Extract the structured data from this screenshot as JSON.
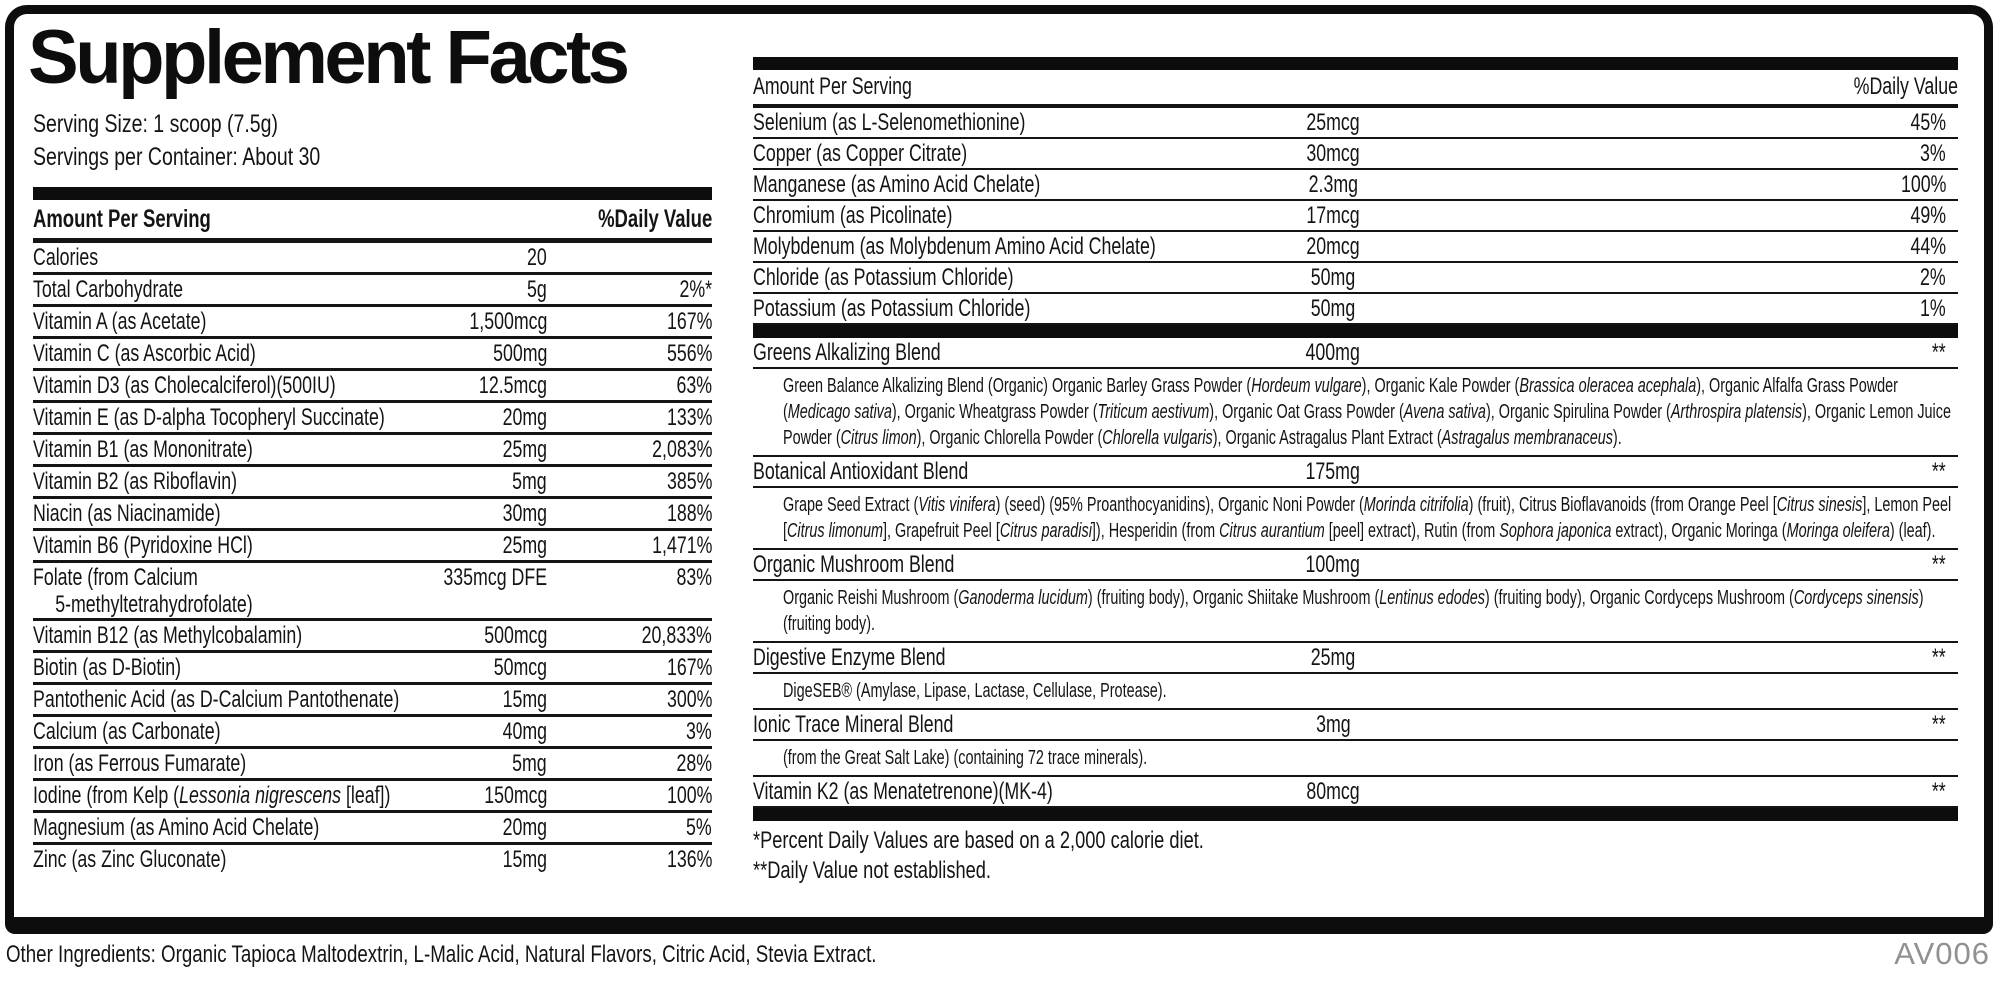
{
  "title": "Supplement Facts",
  "serving": {
    "size": "Serving Size: 1 scoop (7.5g)",
    "per_container": "Servings per Container: About 30"
  },
  "table_headers": {
    "amount": "Amount Per Serving",
    "dv": "%Daily Value"
  },
  "left_table": {
    "rows": [
      {
        "name": [
          [
            "Calories",
            0
          ]
        ],
        "amount": "20",
        "dv": ""
      },
      {
        "name": [
          [
            "Total Carbohydrate",
            0
          ]
        ],
        "amount": "5g",
        "dv": "2%*"
      },
      {
        "name": [
          [
            "Vitamin A (as Acetate)",
            0
          ]
        ],
        "amount": "1,500mcg",
        "dv": "167%"
      },
      {
        "name": [
          [
            "Vitamin C (as Ascorbic Acid)",
            0
          ]
        ],
        "amount": "500mg",
        "dv": "556%"
      },
      {
        "name": [
          [
            "Vitamin D3 (as Cholecalciferol)(500IU)",
            0
          ]
        ],
        "amount": "12.5mcg",
        "dv": "63%"
      },
      {
        "name": [
          [
            "Vitamin E (as D-alpha Tocopheryl Succinate)",
            0
          ]
        ],
        "amount": "20mg",
        "dv": "133%"
      },
      {
        "name": [
          [
            "Vitamin B1 (as Mononitrate)",
            0
          ]
        ],
        "amount": "25mg",
        "dv": "2,083%"
      },
      {
        "name": [
          [
            "Vitamin B2 (as Riboflavin)",
            0
          ]
        ],
        "amount": "5mg",
        "dv": "385%"
      },
      {
        "name": [
          [
            "Niacin (as Niacinamide)",
            0
          ]
        ],
        "amount": "30mg",
        "dv": "188%"
      },
      {
        "name": [
          [
            "Vitamin B6 (Pyridoxine HCl)",
            0
          ]
        ],
        "amount": "25mg",
        "dv": "1,471%"
      },
      {
        "name": [
          [
            "Folate (from Calcium",
            0
          ],
          [
            "5-methyltetrahydrofolate)",
            2
          ]
        ],
        "amount": "335mcg DFE",
        "dv": "83%"
      },
      {
        "name": [
          [
            "Vitamin B12 (as Methylcobalamin)",
            0
          ]
        ],
        "amount": "500mcg",
        "dv": "20,833%"
      },
      {
        "name": [
          [
            "Biotin (as D-Biotin)",
            0
          ]
        ],
        "amount": "50mcg",
        "dv": "167%"
      },
      {
        "name": [
          [
            "Pantothenic Acid (as D-Calcium Pantothenate)",
            0
          ]
        ],
        "amount": "15mg",
        "dv": "300%"
      },
      {
        "name": [
          [
            "Calcium (as Carbonate)",
            0
          ]
        ],
        "amount": "40mg",
        "dv": "3%"
      },
      {
        "name": [
          [
            "Iron (as Ferrous Fumarate)",
            0
          ]
        ],
        "amount": "5mg",
        "dv": "28%"
      },
      {
        "name": [
          [
            "Iodine (from Kelp (",
            0
          ],
          [
            "Lessonia nigrescens",
            1
          ],
          [
            " [leaf])",
            0
          ]
        ],
        "amount": "150mcg",
        "dv": "100%"
      },
      {
        "name": [
          [
            "Magnesium (as Amino Acid Chelate)",
            0
          ]
        ],
        "amount": "20mg",
        "dv": "5%"
      },
      {
        "name": [
          [
            "Zinc (as Zinc Gluconate)",
            0
          ]
        ],
        "amount": "15mg",
        "dv": "136%"
      }
    ]
  },
  "right_table": {
    "rows": [
      {
        "name": [
          [
            "Selenium (as L-Selenomethionine)",
            0
          ]
        ],
        "amount": "25mcg",
        "dv": "45%"
      },
      {
        "name": [
          [
            "Copper (as Copper Citrate)",
            0
          ]
        ],
        "amount": "30mcg",
        "dv": "3%"
      },
      {
        "name": [
          [
            "Manganese (as Amino Acid Chelate)",
            0
          ]
        ],
        "amount": "2.3mg",
        "dv": "100%"
      },
      {
        "name": [
          [
            "Chromium (as Picolinate)",
            0
          ]
        ],
        "amount": "17mcg",
        "dv": "49%"
      },
      {
        "name": [
          [
            "Molybdenum (as Molybdenum Amino Acid Chelate)",
            0
          ]
        ],
        "amount": "20mcg",
        "dv": "44%"
      },
      {
        "name": [
          [
            "Chloride (as Potassium Chloride)",
            0
          ]
        ],
        "amount": "50mg",
        "dv": "2%"
      },
      {
        "name": [
          [
            "Potassium (as Potassium Chloride)",
            0
          ]
        ],
        "amount": "50mg",
        "dv": "1%"
      }
    ],
    "blends": [
      {
        "name": [
          [
            "Greens Alkalizing Blend",
            0
          ]
        ],
        "amount": "400mg",
        "dv": "**",
        "desc": [
          [
            "Green Balance Alkalizing Blend (Organic) Organic Barley Grass Powder (",
            0
          ],
          [
            "Hordeum vulgare",
            1
          ],
          [
            "), Organic Kale Powder (",
            0
          ],
          [
            "Brassica oleracea acephala",
            1
          ],
          [
            "), Organic Alfalfa Grass Powder (",
            0
          ],
          [
            "Medicago sativa",
            1
          ],
          [
            "), Organic Wheatgrass Powder (",
            0
          ],
          [
            "Triticum aestivum",
            1
          ],
          [
            "), Organic Oat Grass Powder (",
            0
          ],
          [
            "Avena sativa",
            1
          ],
          [
            "), Organic Spirulina Powder (",
            0
          ],
          [
            "Arthrospira platensis",
            1
          ],
          [
            "), Organic Lemon Juice Powder (",
            0
          ],
          [
            "Citrus limon",
            1
          ],
          [
            "), Organic Chlorella Powder (",
            0
          ],
          [
            "Chlorella vulgaris",
            1
          ],
          [
            "), Organic Astragalus Plant Extract (",
            0
          ],
          [
            "Astragalus membranaceus",
            1
          ],
          [
            ").",
            0
          ]
        ]
      },
      {
        "name": [
          [
            "Botanical Antioxidant Blend",
            0
          ]
        ],
        "amount": "175mg",
        "dv": "**",
        "desc": [
          [
            "Grape Seed Extract (",
            0
          ],
          [
            "Vitis vinifera",
            1
          ],
          [
            ") (seed) (95% Proanthocyanidins), Organic Noni Powder (",
            0
          ],
          [
            "Morinda citrifolia",
            1
          ],
          [
            ") (fruit), Citrus Bioflavanoids (from Orange Peel [",
            0
          ],
          [
            "Citrus sinesis",
            1
          ],
          [
            "], Lemon Peel [",
            0
          ],
          [
            "Citrus limonum",
            1
          ],
          [
            "], Grapefruit Peel [",
            0
          ],
          [
            "Citrus paradisi",
            1
          ],
          [
            "]), Hesperidin (from ",
            0
          ],
          [
            "Citrus aurantium",
            1
          ],
          [
            " [peel] extract), Rutin (from ",
            0
          ],
          [
            "Sophora japonica",
            1
          ],
          [
            " extract), Organic Moringa (",
            0
          ],
          [
            "Moringa oleifera",
            1
          ],
          [
            ") (leaf).",
            0
          ]
        ]
      },
      {
        "name": [
          [
            "Organic Mushroom Blend",
            0
          ]
        ],
        "amount": "100mg",
        "dv": "**",
        "desc": [
          [
            "Organic Reishi Mushroom (",
            0
          ],
          [
            "Ganoderma lucidum",
            1
          ],
          [
            ") (fruiting body), Organic Shiitake Mushroom (",
            0
          ],
          [
            "Lentinus edodes",
            1
          ],
          [
            ") (fruiting body), Organic Cordyceps Mushroom (",
            0
          ],
          [
            "Cordyceps sinensis",
            1
          ],
          [
            ") (fruiting body).",
            0
          ]
        ]
      },
      {
        "name": [
          [
            "Digestive Enzyme Blend",
            0
          ]
        ],
        "amount": "25mg",
        "dv": "**",
        "desc": [
          [
            "DigeSEB® (Amylase, Lipase, Lactase, Cellulase, Protease).",
            0
          ]
        ]
      },
      {
        "name": [
          [
            "Ionic Trace Mineral Blend",
            0
          ]
        ],
        "amount": "3mg",
        "dv": "**",
        "desc": [
          [
            "(from the Great Salt Lake) (containing 72 trace minerals).",
            0
          ]
        ]
      },
      {
        "name": [
          [
            "Vitamin K2 (as Menatetrenone)(MK-4)",
            0
          ]
        ],
        "amount": "80mcg",
        "dv": "**",
        "desc": null
      }
    ],
    "footnotes": [
      "*Percent Daily Values are based on a 2,000 calorie diet.",
      "**Daily Value not established."
    ]
  },
  "footer": {
    "other_ingredients": "Other Ingredients: Organic Tapioca Maltodextrin, L-Malic Acid, Natural Flavors, Citric Acid, Stevia Extract.",
    "code": "AV006"
  }
}
